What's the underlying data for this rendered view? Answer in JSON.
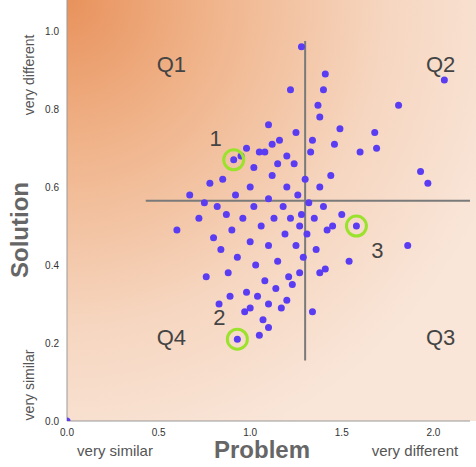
{
  "chart_data": {
    "type": "scatter",
    "x_label": "Problem",
    "y_label": "Solution",
    "x_end_labels": [
      "very similar",
      "very different"
    ],
    "y_end_labels": [
      "very similar",
      "very different"
    ],
    "xlim": [
      0,
      2.2
    ],
    "ylim": [
      0,
      1.08
    ],
    "xticks": [
      {
        "value": 0,
        "label": "0.0"
      },
      0.5,
      {
        "value": 1,
        "label": "1.0"
      },
      1.5,
      {
        "value": 2,
        "label": "2.0"
      }
    ],
    "yticks": [
      {
        "value": 0,
        "label": "0.0"
      },
      0.2,
      0.4,
      0.6,
      0.8,
      {
        "value": 1,
        "label": "1.0"
      }
    ],
    "grid": false,
    "color": "#5a3cf2",
    "marker": "circle",
    "x": [
      0.6,
      0.67,
      0.72,
      0.75,
      0.78,
      0.8,
      0.82,
      0.84,
      0.85,
      0.87,
      0.88,
      0.9,
      0.92,
      0.93,
      0.95,
      0.96,
      0.98,
      1.0,
      1.0,
      1.02,
      1.03,
      1.05,
      1.06,
      1.08,
      1.1,
      1.1,
      1.12,
      1.13,
      1.15,
      1.16,
      1.18,
      1.19,
      1.2,
      1.21,
      1.22,
      1.24,
      1.25,
      1.26,
      1.27,
      1.28,
      1.29,
      1.3,
      1.31,
      1.32,
      1.33,
      1.35,
      1.36,
      1.38,
      1.4,
      1.42,
      1.44,
      0.76,
      0.83,
      0.89,
      0.97,
      1.0,
      1.04,
      1.07,
      1.1,
      1.14,
      1.17,
      1.2,
      1.23,
      1.27,
      1.1,
      1.05,
      0.98,
      1.02,
      1.08,
      1.1,
      1.15,
      1.2,
      1.25,
      1.22,
      1.12,
      1.34,
      1.37,
      1.38,
      1.4,
      1.41,
      1.46,
      1.49,
      1.28,
      1.6,
      1.68,
      1.69,
      1.81,
      1.93,
      1.97,
      2.06,
      1.86,
      1.54,
      1.41,
      1.38,
      1.34,
      1.5,
      1.45,
      0
    ],
    "values": [
      0.49,
      0.58,
      0.52,
      0.56,
      0.61,
      0.47,
      0.55,
      0.44,
      0.62,
      0.53,
      0.38,
      0.49,
      0.58,
      0.42,
      0.68,
      0.52,
      0.33,
      0.46,
      0.6,
      0.55,
      0.4,
      0.69,
      0.5,
      0.36,
      0.57,
      0.45,
      0.63,
      0.52,
      0.41,
      0.72,
      0.55,
      0.48,
      0.6,
      0.37,
      0.52,
      0.66,
      0.45,
      0.58,
      0.5,
      0.53,
      0.42,
      0.62,
      0.48,
      0.56,
      0.69,
      0.52,
      0.44,
      0.6,
      0.55,
      0.49,
      0.63,
      0.37,
      0.3,
      0.32,
      0.28,
      0.29,
      0.32,
      0.26,
      0.3,
      0.34,
      0.29,
      0.31,
      0.35,
      0.38,
      0.24,
      0.22,
      0.7,
      0.65,
      0.69,
      0.76,
      0.66,
      0.68,
      0.74,
      0.85,
      0.71,
      0.72,
      0.81,
      0.78,
      0.85,
      0.89,
      0.71,
      0.75,
      0.96,
      0.69,
      0.74,
      0.7,
      0.81,
      0.64,
      0.61,
      0.875,
      0.45,
      0.41,
      0.39,
      0.38,
      0.28,
      0.53,
      0.5,
      0
    ],
    "highlights": [
      {
        "label": "1",
        "x": 0.91,
        "y": 0.67
      },
      {
        "label": "2",
        "x": 0.93,
        "y": 0.21
      },
      {
        "label": "3",
        "x": 1.58,
        "y": 0.5
      }
    ],
    "quadrant_labels": [
      {
        "text": "Q1",
        "x": 0.57,
        "y": 0.91
      },
      {
        "text": "Q2",
        "x": 2.04,
        "y": 0.91
      },
      {
        "text": "Q3",
        "x": 2.04,
        "y": 0.21
      },
      {
        "text": "Q4",
        "x": 0.57,
        "y": 0.21
      }
    ],
    "vertical_line": {
      "x": 1.3,
      "y_from": 0.155,
      "y_to": 0.975
    },
    "horizontal_line": {
      "y": 0.565,
      "x_from": 0.43,
      "x_to": 2.2
    }
  }
}
